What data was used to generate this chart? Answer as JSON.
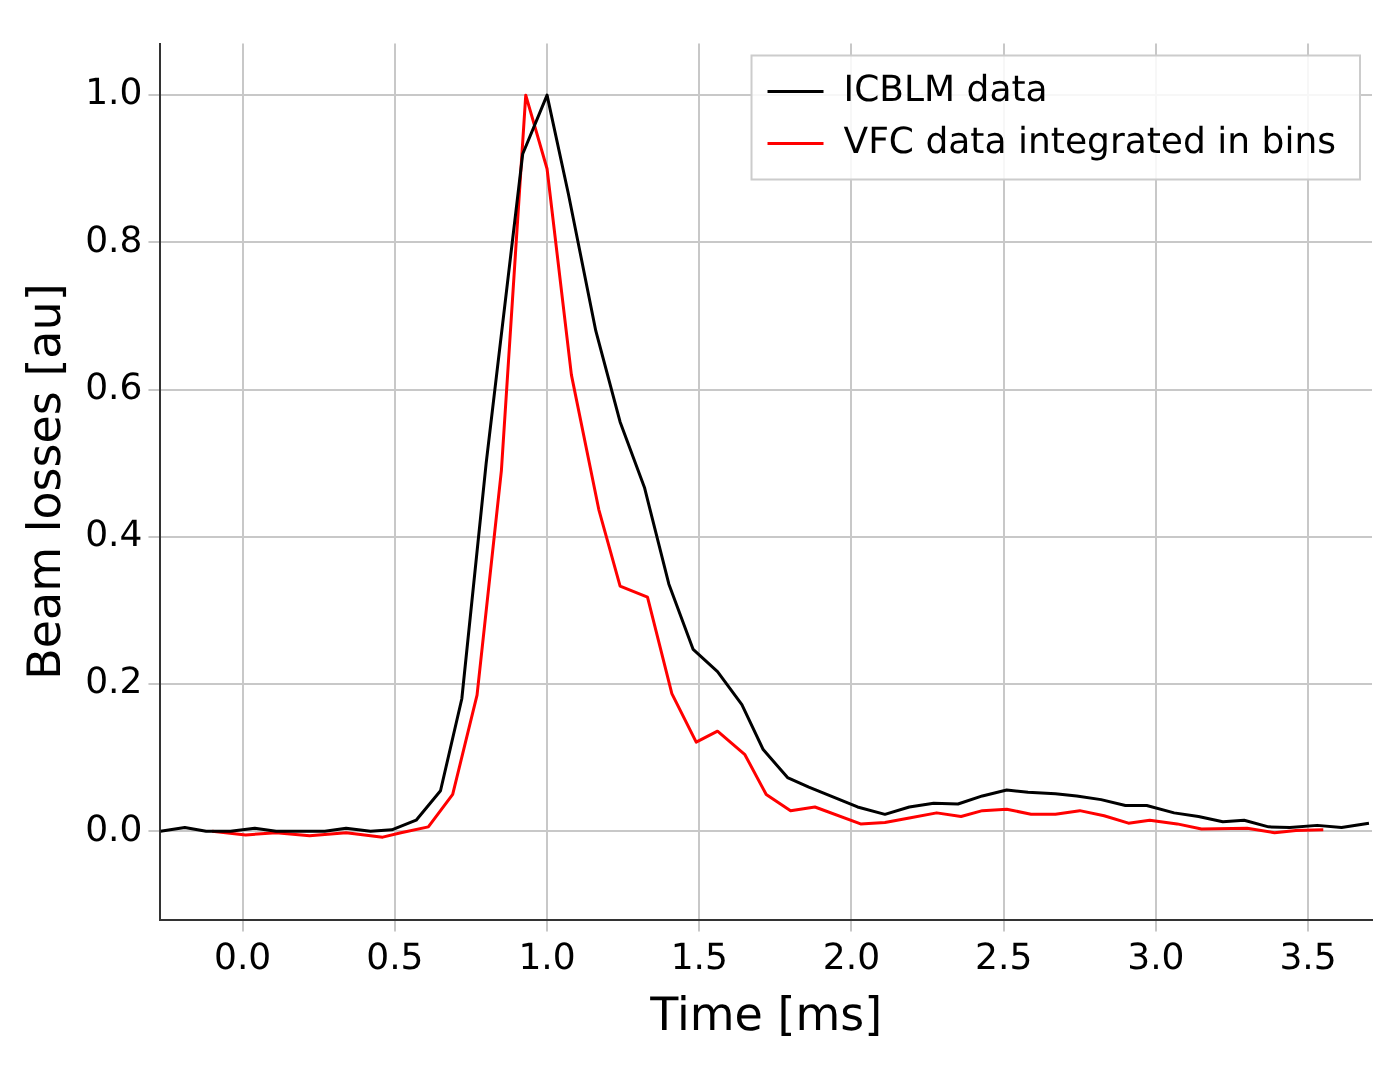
{
  "chart_data": {
    "type": "line",
    "xlabel": "Time [ms]",
    "ylabel": "Beam losses [au]",
    "xlim": [
      -0.27,
      3.71
    ],
    "xticks": [
      {
        "value": 0,
        "label": "0.0"
      },
      0.5,
      {
        "value": 1,
        "label": "1.0"
      },
      1.5,
      {
        "value": 2,
        "label": "2.0"
      },
      2.5,
      {
        "value": 3,
        "label": "3.0"
      },
      3.5
    ],
    "ylim": [
      -0.12,
      1.07
    ],
    "yticks": [
      {
        "value": 0,
        "label": "0.0"
      },
      0.2,
      0.4,
      0.6,
      0.8,
      {
        "value": 1,
        "label": "1.0"
      }
    ],
    "grid": true,
    "legend": "top right",
    "marker": "none",
    "line_style": "solid",
    "series": [
      {
        "name": "ICBLM data",
        "color": "#000000",
        "x": [
          -0.27,
          -0.19,
          -0.12,
          -0.04,
          0.04,
          0.11,
          0.19,
          0.27,
          0.34,
          0.42,
          0.49,
          0.57,
          0.65,
          0.72,
          0.8,
          0.92,
          1.0,
          1.07,
          1.16,
          1.24,
          1.32,
          1.4,
          1.48,
          1.56,
          1.64,
          1.71,
          1.79,
          1.86,
          2.02,
          2.11,
          2.19,
          2.27,
          2.35,
          2.43,
          2.51,
          2.58,
          2.67,
          2.74,
          2.82,
          2.9,
          2.97,
          3.06,
          3.14,
          3.22,
          3.29,
          3.37,
          3.44,
          3.53,
          3.61,
          3.7
        ],
        "values": [
          0.0,
          0.005,
          0.0,
          0.0,
          0.004,
          0.0,
          0.0,
          0.0,
          0.004,
          0.0,
          0.002,
          0.015,
          0.055,
          0.18,
          0.5,
          0.92,
          1.0,
          0.866,
          0.68,
          0.556,
          0.467,
          0.336,
          0.247,
          0.217,
          0.172,
          0.111,
          0.073,
          0.06,
          0.033,
          0.023,
          0.033,
          0.038,
          0.037,
          0.048,
          0.056,
          0.053,
          0.051,
          0.048,
          0.043,
          0.035,
          0.035,
          0.025,
          0.02,
          0.013,
          0.015,
          0.006,
          0.005,
          0.008,
          0.005,
          0.011
        ]
      },
      {
        "name": "VFC data integrated in bins",
        "color": "#ff0000",
        "x": [
          -0.1,
          0.01,
          0.11,
          0.22,
          0.34,
          0.46,
          0.52,
          0.61,
          0.69,
          0.77,
          0.85,
          0.93,
          1.0,
          1.08,
          1.17,
          1.24,
          1.33,
          1.41,
          1.49,
          1.56,
          1.65,
          1.72,
          1.8,
          1.88,
          2.03,
          2.11,
          2.19,
          2.28,
          2.36,
          2.43,
          2.51,
          2.59,
          2.67,
          2.75,
          2.83,
          2.91,
          2.98,
          3.07,
          3.15,
          3.3,
          3.39,
          3.46,
          3.55
        ],
        "values": [
          0.0,
          -0.005,
          -0.002,
          -0.006,
          -0.002,
          -0.008,
          -0.002,
          0.006,
          0.05,
          0.185,
          0.49,
          1.0,
          0.9,
          0.62,
          0.437,
          0.333,
          0.318,
          0.187,
          0.121,
          0.136,
          0.104,
          0.05,
          0.028,
          0.033,
          0.01,
          0.012,
          0.018,
          0.025,
          0.02,
          0.028,
          0.03,
          0.023,
          0.023,
          0.028,
          0.021,
          0.011,
          0.015,
          0.01,
          0.003,
          0.004,
          -0.002,
          0.001,
          0.002
        ]
      }
    ]
  }
}
